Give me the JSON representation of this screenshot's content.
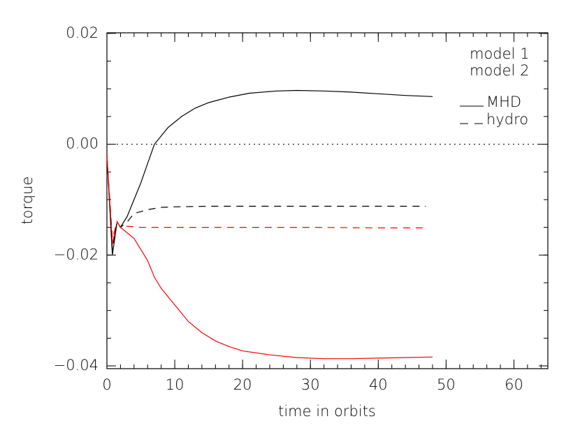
{
  "chart_data": {
    "type": "line",
    "x_label": "time in orbits",
    "y_label": "torque",
    "xlim": [
      0,
      65
    ],
    "ylim": [
      -0.0405,
      0.0201
    ],
    "xticks": [
      0,
      10,
      20,
      30,
      40,
      50,
      60
    ],
    "yticks": [
      {
        "value": 0.02,
        "label": "0.02"
      },
      {
        "value": 0,
        "label": "0.00"
      },
      {
        "value": -0.02,
        "label": "−0.02"
      },
      {
        "value": -0.04,
        "label": "−0.04"
      }
    ],
    "x_minor_step": 2,
    "y_minor_step": 0.005,
    "reference_line": 0,
    "legend": {
      "models": [
        {
          "label": "model 1",
          "color": "#000000"
        },
        {
          "label": "model 2",
          "color": "#ff0000"
        }
      ],
      "styles": [
        {
          "label": "MHD",
          "dash": "solid"
        },
        {
          "label": "hydro",
          "dash": "dashed"
        }
      ]
    },
    "series": [
      {
        "model": 0,
        "style": 0,
        "x": [
          0,
          0.8,
          1.5,
          2,
          3,
          4,
          5,
          6,
          7,
          9,
          11,
          13,
          15,
          18,
          21,
          25,
          28,
          32,
          36,
          40,
          44,
          48
        ],
        "values": [
          -0.002,
          -0.02,
          -0.014,
          -0.015,
          -0.013,
          -0.01,
          -0.007,
          -0.0035,
          0,
          0.003,
          0.005,
          0.0065,
          0.0075,
          0.0085,
          0.0092,
          0.0096,
          0.0097,
          0.0096,
          0.0094,
          0.0091,
          0.0088,
          0.0086
        ]
      },
      {
        "model": 1,
        "style": 0,
        "x": [
          0,
          0.8,
          1.5,
          2,
          3,
          4,
          5,
          6,
          7,
          8,
          10,
          12,
          14,
          16,
          18,
          20,
          24,
          28,
          32,
          36,
          40,
          44,
          48
        ],
        "values": [
          -0.002,
          -0.018,
          -0.014,
          -0.015,
          -0.016,
          -0.017,
          -0.019,
          -0.021,
          -0.024,
          -0.026,
          -0.029,
          -0.032,
          -0.034,
          -0.0355,
          -0.0365,
          -0.0373,
          -0.038,
          -0.0385,
          -0.0387,
          -0.0387,
          -0.0386,
          -0.0385,
          -0.0384
        ]
      },
      {
        "model": 0,
        "style": 1,
        "x": [
          0,
          0.8,
          1.5,
          2,
          3,
          4,
          6,
          8,
          10,
          15,
          20,
          30,
          40,
          47
        ],
        "values": [
          -0.002,
          -0.019,
          -0.014,
          -0.015,
          -0.014,
          -0.0125,
          -0.0118,
          -0.0114,
          -0.0113,
          -0.0112,
          -0.0112,
          -0.0112,
          -0.0112,
          -0.0112
        ]
      },
      {
        "model": 1,
        "style": 1,
        "x": [
          0,
          0.8,
          1.5,
          2,
          3,
          5,
          10,
          20,
          30,
          40,
          47
        ],
        "values": [
          -0.002,
          -0.017,
          -0.014,
          -0.015,
          -0.0148,
          -0.015,
          -0.015,
          -0.015,
          -0.015,
          -0.0151,
          -0.0151
        ]
      }
    ]
  }
}
